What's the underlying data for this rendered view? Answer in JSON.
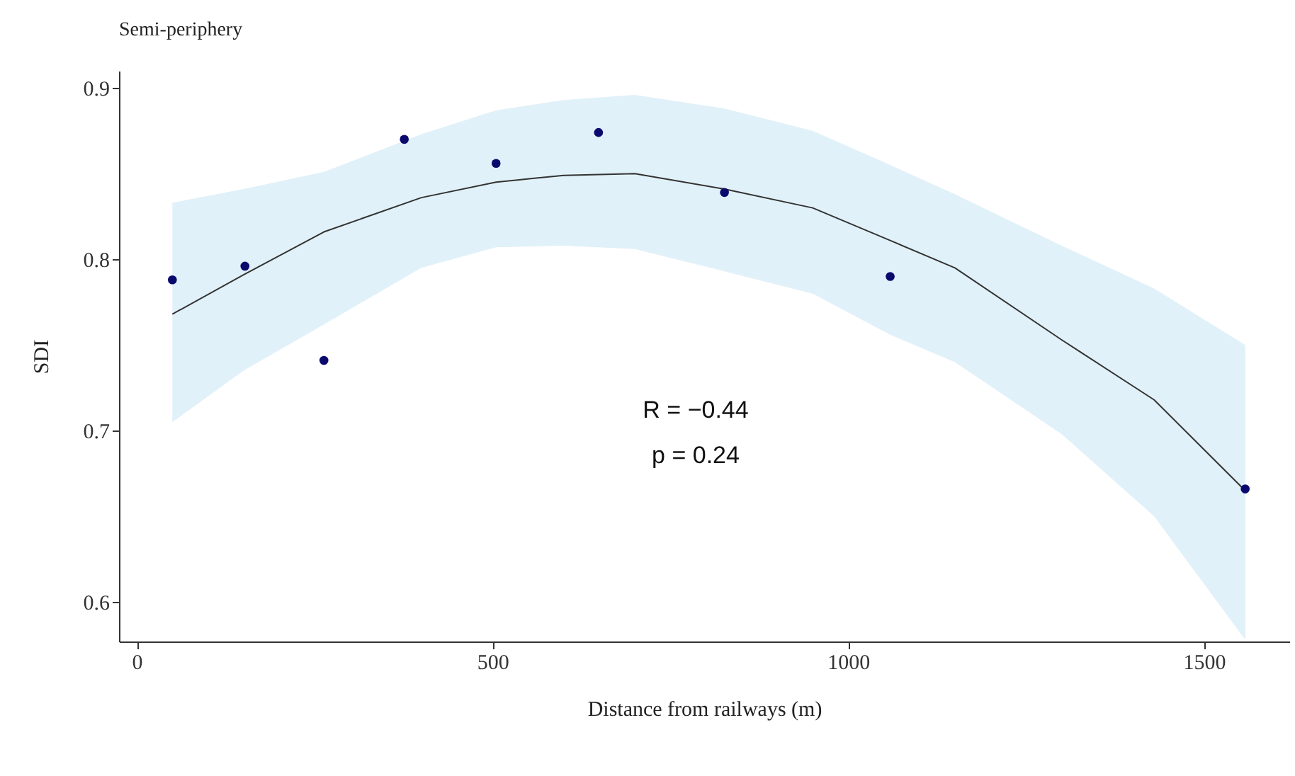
{
  "chart_data": {
    "type": "scatter",
    "title": "Semi-periphery",
    "xlabel": "Distance from railways (m)",
    "ylabel": "SDI",
    "xlim": [
      -25,
      1620
    ],
    "xticks": [
      0,
      500,
      1000,
      1500
    ],
    "ylim": [
      0.577,
      0.91
    ],
    "yticks": [
      0.6,
      0.7,
      0.8,
      0.9
    ],
    "grid": false,
    "series": [
      {
        "marker": "circle",
        "color": "#0a0a6e",
        "x": [
          50,
          152,
          263,
          376,
          505,
          649,
          826,
          1059,
          1558
        ],
        "values": [
          0.788,
          0.796,
          0.741,
          0.87,
          0.856,
          0.874,
          0.839,
          0.79,
          0.666
        ]
      },
      {
        "type": "line",
        "color": "#333333",
        "x": [
          50,
          150,
          263,
          400,
          505,
          600,
          700,
          826,
          950,
          1059,
          1150,
          1300,
          1430,
          1558
        ],
        "values": [
          0.768,
          0.791,
          0.816,
          0.836,
          0.845,
          0.849,
          0.85,
          0.841,
          0.83,
          0.811,
          0.795,
          0.753,
          0.718,
          0.665
        ],
        "lower": [
          0.705,
          0.735,
          0.762,
          0.795,
          0.807,
          0.808,
          0.806,
          0.793,
          0.78,
          0.756,
          0.74,
          0.698,
          0.65,
          0.578
        ],
        "upper": [
          0.833,
          0.841,
          0.851,
          0.873,
          0.887,
          0.893,
          0.896,
          0.888,
          0.875,
          0.855,
          0.838,
          0.808,
          0.783,
          0.75
        ]
      }
    ],
    "annotations": [
      "R = −0.44",
      "p = 0.24"
    ]
  }
}
